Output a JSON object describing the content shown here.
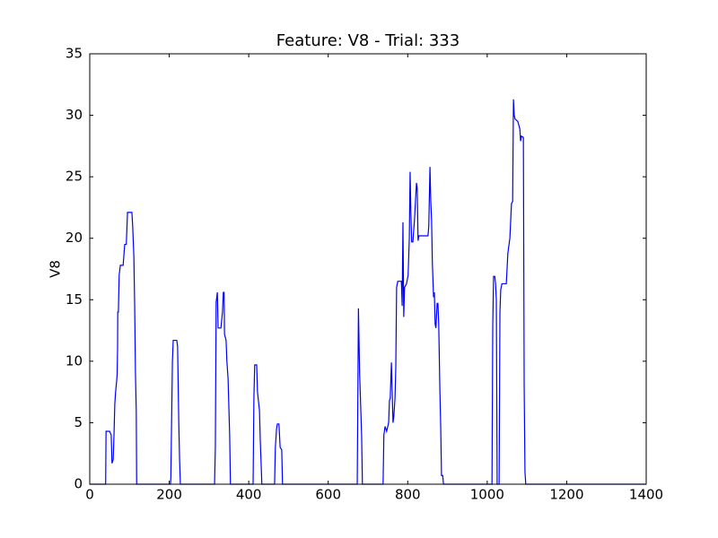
{
  "chart_data": {
    "type": "line",
    "title": "Feature: V8 - Trial: 333",
    "y_label": "V8",
    "x": [
      0,
      40,
      41,
      50,
      54,
      56,
      59,
      61,
      63,
      65,
      68,
      69,
      70,
      70.5,
      72,
      74,
      77,
      84,
      88,
      92,
      95,
      106,
      108,
      111,
      113,
      115,
      117,
      118,
      203,
      204,
      208,
      210,
      219,
      221,
      224,
      226,
      228,
      314,
      316,
      318,
      321,
      323,
      330,
      334,
      336,
      338,
      339,
      343,
      345,
      348,
      352,
      354,
      411,
      413,
      415,
      420,
      422,
      427,
      429,
      433,
      465,
      467,
      470,
      472,
      476,
      479,
      483,
      485,
      673,
      676,
      679,
      684,
      686,
      738,
      740,
      743,
      747,
      752,
      754,
      756,
      759,
      761,
      763,
      765,
      768,
      770,
      772,
      775,
      784,
      786,
      788,
      790,
      792,
      797,
      801,
      804,
      806,
      808,
      810,
      813,
      817,
      822,
      824,
      826,
      828,
      851,
      853,
      856,
      858,
      860,
      862,
      865,
      867,
      869,
      871,
      874,
      876,
      878,
      881,
      883,
      885,
      888,
      890,
      1012,
      1014,
      1016,
      1019,
      1021,
      1023,
      1025,
      1030,
      1032,
      1034,
      1037,
      1048,
      1052,
      1057,
      1061,
      1064,
      1066,
      1068,
      1070,
      1077,
      1082,
      1084,
      1086,
      1091,
      1093,
      1095,
      1097,
      1400
    ],
    "series": [
      {
        "color": "#0000ff",
        "values": [
          0,
          0,
          4.3,
          4.3,
          4,
          1.7,
          2,
          4,
          6.5,
          7.5,
          8.5,
          9,
          11,
          14,
          14,
          17,
          17.8,
          17.8,
          19.5,
          19.5,
          22.1,
          22.1,
          21,
          18.5,
          14.5,
          9,
          6,
          0,
          0,
          0.5,
          10,
          11.7,
          11.7,
          11.2,
          5,
          2,
          0,
          0,
          3,
          14.8,
          15.6,
          12.7,
          12.7,
          14,
          15.6,
          15.6,
          12.2,
          11.7,
          10,
          8.6,
          4,
          0,
          0,
          7,
          9.7,
          9.7,
          7.5,
          6,
          3.6,
          0,
          0,
          3,
          4.5,
          4.9,
          4.9,
          3,
          2.8,
          0,
          0,
          14.3,
          9,
          4,
          0,
          0,
          4,
          4.7,
          4.3,
          5,
          6.8,
          7,
          9.9,
          7.5,
          5,
          5.5,
          7,
          9.5,
          16,
          16.5,
          16.5,
          14.5,
          21.3,
          13.6,
          16,
          16.3,
          17,
          20,
          25.4,
          22,
          19.7,
          19.7,
          21.5,
          24.5,
          24,
          19.8,
          20.2,
          20.2,
          21,
          25.8,
          23,
          21.5,
          18,
          15.2,
          15.6,
          13,
          12.7,
          14.7,
          14.7,
          13,
          7.5,
          4.7,
          0.7,
          0.7,
          0,
          0,
          13,
          16.9,
          16.9,
          16.3,
          15,
          0,
          0,
          14,
          15.8,
          16.3,
          16.3,
          18.8,
          20,
          22.8,
          23,
          31.3,
          30,
          29.7,
          29.5,
          28.9,
          27.9,
          28.3,
          28.2,
          8,
          1,
          0,
          0
        ]
      }
    ],
    "xlim": [
      0,
      1400
    ],
    "xticks": [
      0,
      200,
      400,
      600,
      800,
      1000,
      1200,
      1400
    ],
    "ylim": [
      0,
      35
    ],
    "yticks": [
      0,
      5,
      10,
      15,
      20,
      25,
      30,
      35
    ]
  }
}
